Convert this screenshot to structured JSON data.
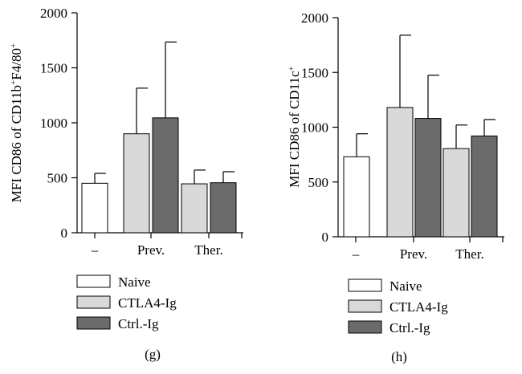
{
  "chart_data": [
    {
      "type": "bar",
      "panel_label": "(g)",
      "ylabel_html": [
        "MFI CD86 of CD11b",
        "+",
        "F4/80",
        "+"
      ],
      "categories": [
        "–",
        "Prev.",
        "Ther."
      ],
      "ylim": [
        0,
        2000
      ],
      "yticks": [
        "0",
        "500",
        "1000",
        "1500",
        "2000"
      ],
      "ytick_values": [
        0,
        500,
        1000,
        1500,
        2000
      ],
      "bars": [
        {
          "category": "–",
          "series": "Naive",
          "value": 450,
          "error": 90
        },
        {
          "category": "Prev.",
          "series": "CTLA4-Ig",
          "value": 900,
          "error": 415
        },
        {
          "category": "Prev.",
          "series": "Ctrl.-Ig",
          "value": 1045,
          "error": 690
        },
        {
          "category": "Ther.",
          "series": "CTLA4-Ig",
          "value": 445,
          "error": 125
        },
        {
          "category": "Ther.",
          "series": "Ctrl.-Ig",
          "value": 455,
          "error": 100
        }
      ],
      "legend": [
        "Naive",
        "CTLA4-Ig",
        "Ctrl.-Ig"
      ],
      "grid": false
    },
    {
      "type": "bar",
      "panel_label": "(h)",
      "ylabel_html": [
        "MFI CD86 of CD11c",
        "+"
      ],
      "categories": [
        "–",
        "Prev.",
        "Ther."
      ],
      "ylim": [
        0,
        2000
      ],
      "yticks": [
        "0",
        "500",
        "1000",
        "1500",
        "2000"
      ],
      "ytick_values": [
        0,
        500,
        1000,
        1500,
        2000
      ],
      "bars": [
        {
          "category": "–",
          "series": "Naive",
          "value": 730,
          "error": 210
        },
        {
          "category": "Prev.",
          "series": "CTLA4-Ig",
          "value": 1180,
          "error": 660
        },
        {
          "category": "Prev.",
          "series": "Ctrl.-Ig",
          "value": 1080,
          "error": 395
        },
        {
          "category": "Ther.",
          "series": "CTLA4-Ig",
          "value": 805,
          "error": 215
        },
        {
          "category": "Ther.",
          "series": "Ctrl.-Ig",
          "value": 920,
          "error": 150
        }
      ],
      "legend": [
        "Naive",
        "CTLA4-Ig",
        "Ctrl.-Ig"
      ],
      "grid": false
    }
  ],
  "series_colors": {
    "Naive": "#ffffff",
    "CTLA4-Ig": "#d9d9d9",
    "Ctrl.-Ig": "#6b6b6b"
  }
}
